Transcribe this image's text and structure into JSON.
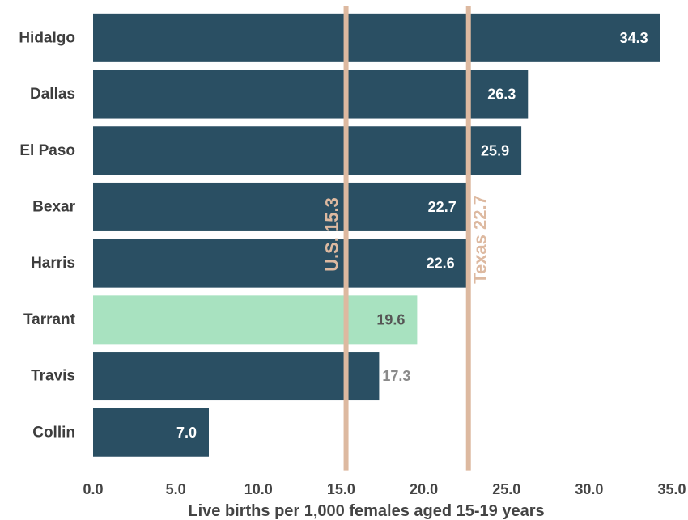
{
  "chart_data": {
    "type": "bar",
    "orientation": "horizontal",
    "title": "",
    "xlabel": "Live births per 1,000 females aged 15-19 years",
    "ylabel": "",
    "xlim": [
      0,
      35
    ],
    "x_ticks": [
      "0.0",
      "5.0",
      "10.0",
      "15.0",
      "20.0",
      "25.0",
      "30.0",
      "35.0"
    ],
    "grid": false,
    "legend": "none",
    "categories": [
      "Hidalgo",
      "Dallas",
      "El Paso",
      "Bexar",
      "Harris",
      "Tarrant",
      "Travis",
      "Collin"
    ],
    "values": [
      34.3,
      26.3,
      25.9,
      22.7,
      22.6,
      19.6,
      17.3,
      7.0
    ],
    "value_labels": [
      "34.3",
      "26.3",
      "25.9",
      "22.7",
      "22.6",
      "19.6",
      "17.3",
      "7.0"
    ],
    "highlight_category": "Tarrant",
    "reference_lines": [
      {
        "name": "U.S.",
        "value": 15.3,
        "label": "U.S. 15.3"
      },
      {
        "name": "Texas",
        "value": 22.7,
        "label": "Texas 22.7"
      }
    ],
    "colors": {
      "bar": "#2a4f63",
      "highlight_bar": "#a8e2c0",
      "reference_line": "#ddb9a0",
      "value_label_light": "#ffffff",
      "value_label_dark": "#555555",
      "value_label_outside": "#8a8a8a"
    }
  }
}
